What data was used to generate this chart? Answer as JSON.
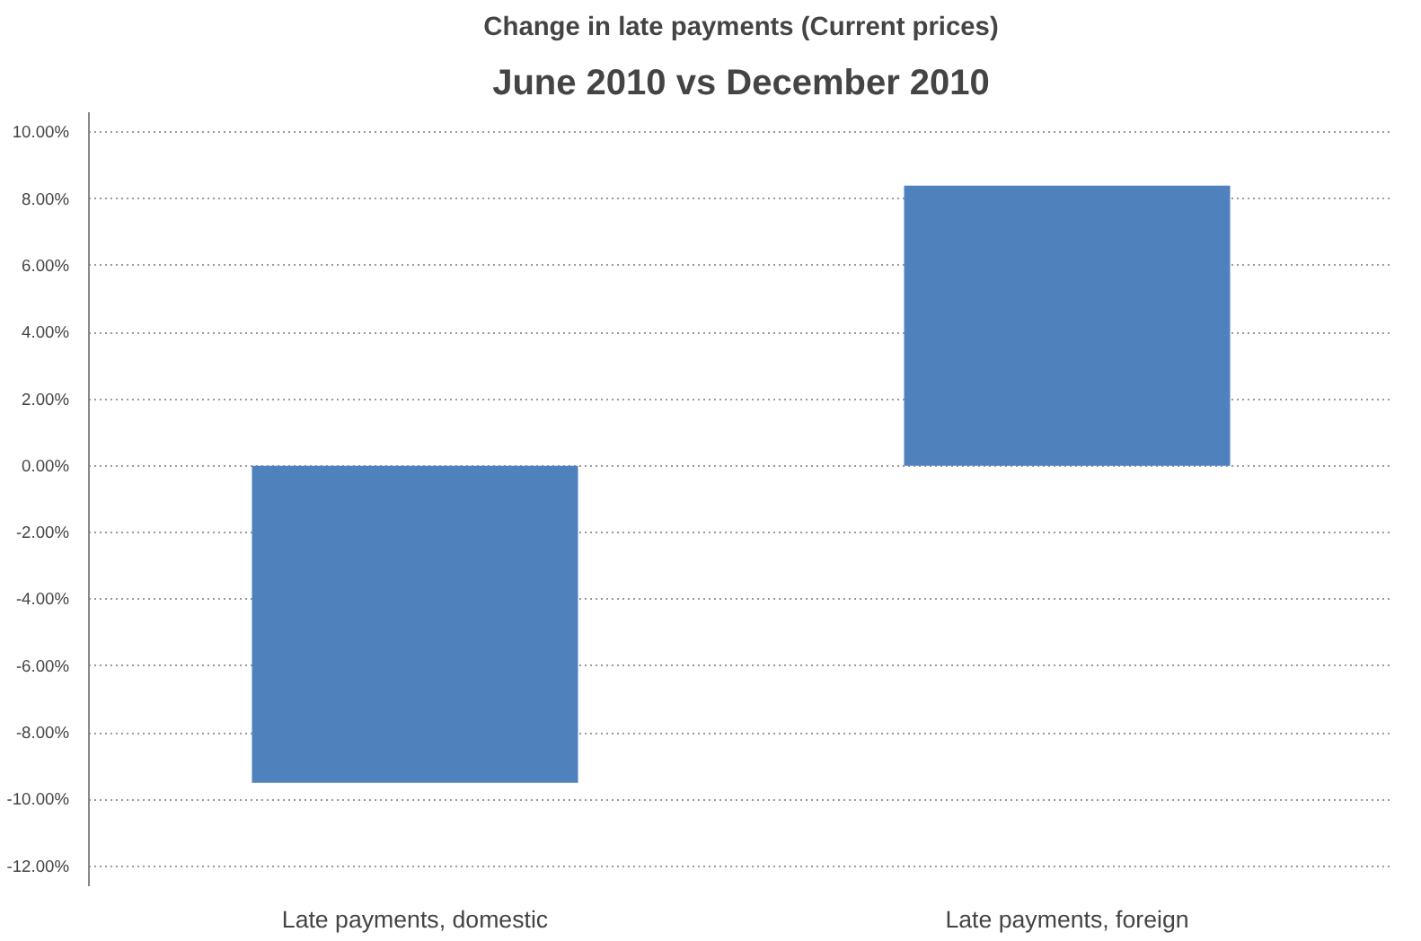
{
  "chart_data": {
    "type": "bar",
    "title": "Change in late payments (Current prices)",
    "subtitle": "June 2010 vs December 2010",
    "categories": [
      "Late payments, domestic",
      "Late payments, foreign"
    ],
    "values": [
      -9.5,
      8.4
    ],
    "color": "#4f81bd",
    "ylim": [
      -12.6,
      10.6
    ],
    "yticks": [
      {
        "value": -12,
        "label": "-12.00%"
      },
      {
        "value": -10,
        "label": "-10.00%"
      },
      {
        "value": -8,
        "label": "-8.00%"
      },
      {
        "value": -6,
        "label": "-6.00%"
      },
      {
        "value": -4,
        "label": "-4.00%"
      },
      {
        "value": -2,
        "label": "-2.00%"
      },
      {
        "value": 0,
        "label": "0.00%"
      },
      {
        "value": 2,
        "label": "2.00%"
      },
      {
        "value": 4,
        "label": "4.00%"
      },
      {
        "value": 6,
        "label": "6.00%"
      },
      {
        "value": 8,
        "label": "8.00%"
      },
      {
        "value": 10,
        "label": "10.00%"
      }
    ],
    "grid": "y"
  }
}
